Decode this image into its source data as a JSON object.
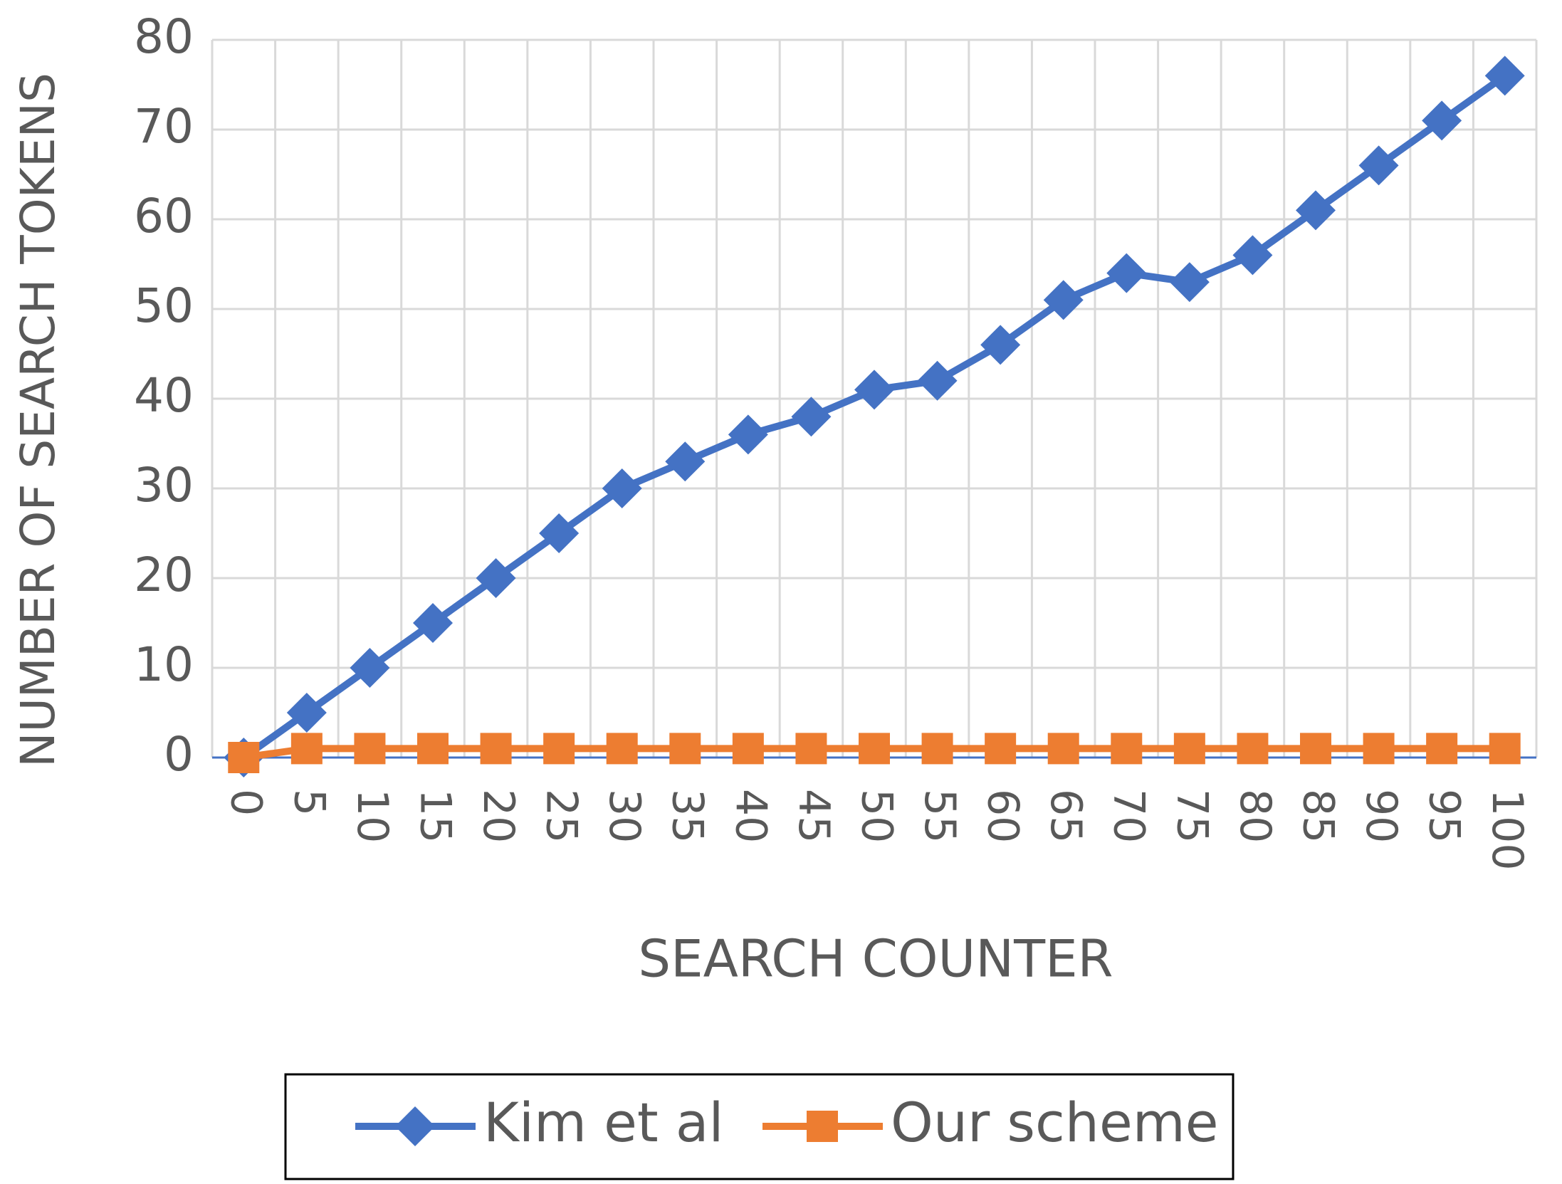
{
  "chart_data": {
    "type": "line",
    "x_label": "SEARCH COUNTER",
    "y_label": "NUMBER OF SEARCH TOKENS",
    "categories": [
      "0",
      "5",
      "10",
      "15",
      "20",
      "25",
      "30",
      "35",
      "40",
      "45",
      "50",
      "55",
      "60",
      "65",
      "70",
      "75",
      "80",
      "85",
      "90",
      "95",
      "100"
    ],
    "series": [
      {
        "name": "Kim et al",
        "color": "#4472c4",
        "marker": "diamond",
        "values": [
          0,
          5,
          10,
          15,
          20,
          25,
          30,
          33,
          36,
          38,
          41,
          42,
          46,
          51,
          54,
          53,
          56,
          61,
          66,
          71,
          76
        ]
      },
      {
        "name": "Our scheme",
        "color": "#ed7d31",
        "marker": "square",
        "values": [
          0,
          1,
          1,
          1,
          1,
          1,
          1,
          1,
          1,
          1,
          1,
          1,
          1,
          1,
          1,
          1,
          1,
          1,
          1,
          1,
          1
        ]
      }
    ],
    "ylim": [
      0,
      80
    ],
    "yticks": [
      0,
      10,
      20,
      30,
      40,
      50,
      60,
      70,
      80
    ],
    "grid": true,
    "legend": "bottom"
  }
}
